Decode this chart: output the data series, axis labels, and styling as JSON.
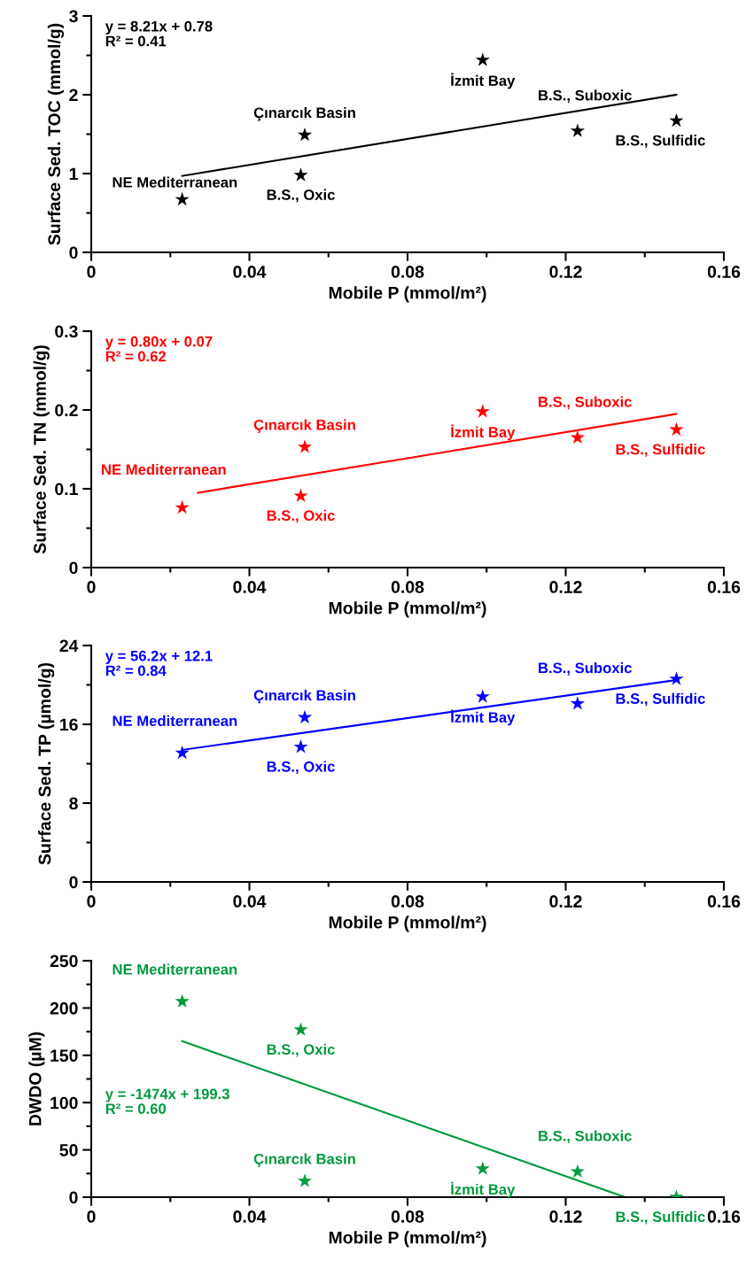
{
  "chart_data": [
    {
      "type": "scatter",
      "xlabel": "Mobile P (mmol/m²)",
      "ylabel": "Surface Sed. TOC (mmol/g)",
      "legend": false,
      "grid": false,
      "xlim": [
        0,
        0.16
      ],
      "xticks": [
        0,
        {
          "value": 0.02,
          "label": null
        },
        0.04,
        {
          "value": 0.06,
          "label": null
        },
        0.08,
        {
          "value": 0.1,
          "label": null
        },
        0.12,
        {
          "value": 0.14,
          "label": null
        },
        0.16
      ],
      "ylim": [
        0,
        3
      ],
      "yticks": [
        0,
        {
          "value": 0.5,
          "label": null
        },
        1,
        {
          "value": 1.5,
          "label": null
        },
        2,
        {
          "value": 2.5,
          "label": null
        },
        3
      ],
      "x": [
        0.023,
        0.053,
        0.054,
        0.099,
        0.123,
        0.148
      ],
      "series": [
        {
          "color": "#000000",
          "marker": "star",
          "values": [
            0.67,
            0.98,
            1.49,
            2.44,
            1.54,
            1.67
          ]
        },
        {
          "type": "line",
          "color": "#000000",
          "x": [
            0.023,
            0.148
          ],
          "values": [
            0.97,
            2.0
          ]
        }
      ],
      "annotations": [
        "y = 8.21x + 0.78\nR² = 0.41",
        {
          "text": "NE Mediterranean",
          "x": 0.023,
          "y": 0.67
        },
        {
          "text": "B.S., Oxic",
          "x": 0.053,
          "y": 0.98
        },
        {
          "text": "Çınarcık Basin",
          "x": 0.054,
          "y": 1.49
        },
        {
          "text": "İzmit Bay",
          "x": 0.099,
          "y": 2.44
        },
        {
          "text": "B.S., Suboxic",
          "x": 0.123,
          "y": 1.54
        },
        {
          "text": "B.S., Sulfidic",
          "x": 0.148,
          "y": 1.67
        }
      ]
    },
    {
      "type": "scatter",
      "xlabel": "Mobile P (mmol/m²)",
      "ylabel": "Surface Sed. TN (mmol/g)",
      "legend": false,
      "grid": false,
      "xlim": [
        0,
        0.16
      ],
      "xticks": [
        0,
        {
          "value": 0.02,
          "label": null
        },
        0.04,
        {
          "value": 0.06,
          "label": null
        },
        0.08,
        {
          "value": 0.1,
          "label": null
        },
        0.12,
        {
          "value": 0.14,
          "label": null
        },
        0.16
      ],
      "ylim": [
        0,
        0.3
      ],
      "yticks": [
        0,
        {
          "value": 0.05,
          "label": null
        },
        0.1,
        {
          "value": 0.15,
          "label": null
        },
        0.2,
        {
          "value": 0.25,
          "label": null
        },
        0.3
      ],
      "x": [
        0.023,
        0.053,
        0.054,
        0.099,
        0.123,
        0.148
      ],
      "series": [
        {
          "color": "#ff0000",
          "marker": "star",
          "values": [
            0.076,
            0.091,
            0.153,
            0.198,
            0.165,
            0.175
          ]
        },
        {
          "type": "line",
          "color": "#ff0000",
          "x": [
            0.027,
            0.148
          ],
          "values": [
            0.095,
            0.195
          ]
        }
      ],
      "annotations": [
        "y = 0.80x + 0.07\nR² = 0.62",
        {
          "text": "NE Mediterranean",
          "x": 0.023,
          "y": 0.076
        },
        {
          "text": "B.S., Oxic",
          "x": 0.053,
          "y": 0.091
        },
        {
          "text": "Çınarcık Basin",
          "x": 0.054,
          "y": 0.153
        },
        {
          "text": "İzmit Bay",
          "x": 0.099,
          "y": 0.198
        },
        {
          "text": "B.S., Suboxic",
          "x": 0.123,
          "y": 0.165
        },
        {
          "text": "B.S., Sulfidic",
          "x": 0.148,
          "y": 0.175
        }
      ]
    },
    {
      "type": "scatter",
      "xlabel": "Mobile P (mmol/m²)",
      "ylabel": "Surface Sed. TP (µmol/g)",
      "legend": false,
      "grid": false,
      "xlim": [
        0,
        0.16
      ],
      "xticks": [
        0,
        {
          "value": 0.02,
          "label": null
        },
        0.04,
        {
          "value": 0.06,
          "label": null
        },
        0.08,
        {
          "value": 0.1,
          "label": null
        },
        0.12,
        {
          "value": 0.14,
          "label": null
        },
        0.16
      ],
      "ylim": [
        0,
        24
      ],
      "yticks": [
        0,
        {
          "value": 4,
          "label": null
        },
        8,
        {
          "value": 12,
          "label": null
        },
        16,
        {
          "value": 20,
          "label": null
        },
        24
      ],
      "x": [
        0.023,
        0.053,
        0.054,
        0.099,
        0.123,
        0.148
      ],
      "series": [
        {
          "color": "#0000ff",
          "marker": "star",
          "values": [
            13.1,
            13.7,
            16.7,
            18.8,
            18.1,
            20.6
          ]
        },
        {
          "type": "line",
          "color": "#0000ff",
          "x": [
            0.023,
            0.148
          ],
          "values": [
            13.4,
            20.5
          ]
        }
      ],
      "annotations": [
        "y = 56.2x + 12.1\nR² = 0.84",
        {
          "text": "NE Mediterranean",
          "x": 0.023,
          "y": 13.1
        },
        {
          "text": "B.S., Oxic",
          "x": 0.053,
          "y": 13.7
        },
        {
          "text": "Çınarcık Basin",
          "x": 0.054,
          "y": 16.7
        },
        {
          "text": "İzmit Bay",
          "x": 0.099,
          "y": 18.8
        },
        {
          "text": "B.S., Suboxic",
          "x": 0.123,
          "y": 18.1
        },
        {
          "text": "B.S., Sulfidic",
          "x": 0.148,
          "y": 20.6
        }
      ]
    },
    {
      "type": "scatter",
      "xlabel": "Mobile P (mmol/m²)",
      "ylabel": "DWDO (µM)",
      "legend": false,
      "grid": false,
      "xlim": [
        0,
        0.16
      ],
      "xticks": [
        0,
        {
          "value": 0.02,
          "label": null
        },
        0.04,
        {
          "value": 0.06,
          "label": null
        },
        0.08,
        {
          "value": 0.1,
          "label": null
        },
        0.12,
        {
          "value": 0.14,
          "label": null
        },
        0.16
      ],
      "ylim": [
        0,
        250
      ],
      "yticks": [
        0,
        {
          "value": 25,
          "label": null
        },
        50,
        {
          "value": 75,
          "label": null
        },
        100,
        {
          "value": 125,
          "label": null
        },
        150,
        {
          "value": 175,
          "label": null
        },
        200,
        {
          "value": 225,
          "label": null
        },
        250
      ],
      "x": [
        0.023,
        0.053,
        0.054,
        0.099,
        0.123,
        0.148
      ],
      "series": [
        {
          "color": "#009a3d",
          "marker": "star",
          "values": [
            207,
            177,
            17,
            30,
            27,
            0
          ]
        },
        {
          "type": "line",
          "color": "#009a3d",
          "x": [
            0.023,
            0.135
          ],
          "values": [
            165,
            0
          ]
        }
      ],
      "annotations": [
        "y = -1474x + 199.3\nR² = 0.60",
        {
          "text": "NE Mediterranean",
          "x": 0.023,
          "y": 207
        },
        {
          "text": "B.S., Oxic",
          "x": 0.053,
          "y": 177
        },
        {
          "text": "Çınarcık Basin",
          "x": 0.054,
          "y": 17
        },
        {
          "text": "İzmit Bay",
          "x": 0.099,
          "y": 30
        },
        {
          "text": "B.S., Suboxic",
          "x": 0.123,
          "y": 27
        },
        {
          "text": "B.S., Sulfidic",
          "x": 0.148,
          "y": 0
        }
      ]
    }
  ]
}
